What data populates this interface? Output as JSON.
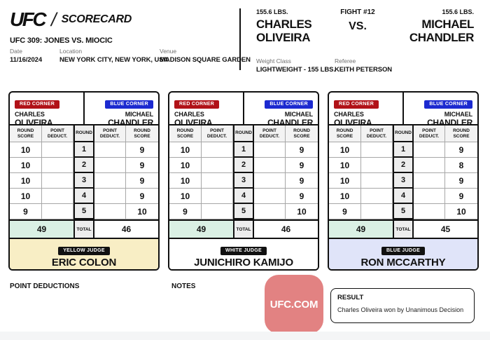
{
  "header": {
    "logo_ufc": "UFC",
    "logo_separator": "/",
    "logo_scorecard": "SCORECARD",
    "event_title": "UFC 309: JONES VS. MIOCIC",
    "date": {
      "label": "Date",
      "value": "11/16/2024"
    },
    "location": {
      "label": "Location",
      "value": "NEW YORK CITY, NEW YORK, USA"
    },
    "venue": {
      "label": "Venue",
      "value": "MADISON SQUARE GARDEN"
    }
  },
  "fight": {
    "red": {
      "weight": "155.6 LBS.",
      "name_line1": "CHARLES",
      "name_line2": "OLIVEIRA"
    },
    "fight_number": "FIGHT #12",
    "vs": "VS.",
    "blue": {
      "weight": "155.6 LBS.",
      "name_line1": "MICHAEL",
      "name_line2": "CHANDLER"
    },
    "weight_class": {
      "label": "Weight Class",
      "value": "LIGHTWEIGHT - 155 LBS."
    },
    "referee": {
      "label": "Referee",
      "value": "KEITH PETERSON"
    }
  },
  "scorecards": {
    "red_corner_label": "RED CORNER",
    "blue_corner_label": "BLUE CORNER",
    "red_fighter": {
      "line1": "CHARLES",
      "line2": "OLIVEIRA"
    },
    "blue_fighter": {
      "line1": "MICHAEL",
      "line2": "CHANDLER"
    },
    "columns": [
      "ROUND SCORE",
      "POINT DEDUCT.",
      "ROUND",
      "POINT DEDUCT.",
      "ROUND SCORE"
    ],
    "total_label": "TOTAL",
    "judges": [
      {
        "badge": "YELLOW JUDGE",
        "name": "ERIC COLON",
        "footer_color": "#f8eec5",
        "rounds": [
          {
            "round": 1,
            "red": 10,
            "red_deduct": "",
            "blue_deduct": "",
            "blue": 9
          },
          {
            "round": 2,
            "red": 10,
            "red_deduct": "",
            "blue_deduct": "",
            "blue": 9
          },
          {
            "round": 3,
            "red": 10,
            "red_deduct": "",
            "blue_deduct": "",
            "blue": 9
          },
          {
            "round": 4,
            "red": 10,
            "red_deduct": "",
            "blue_deduct": "",
            "blue": 9
          },
          {
            "round": 5,
            "red": 9,
            "red_deduct": "",
            "blue_deduct": "",
            "blue": 10
          }
        ],
        "total_red": 49,
        "total_blue": 46
      },
      {
        "badge": "WHITE JUDGE",
        "name": "JUNICHIRO KAMIJO",
        "footer_color": "#ffffff",
        "rounds": [
          {
            "round": 1,
            "red": 10,
            "red_deduct": "",
            "blue_deduct": "",
            "blue": 9
          },
          {
            "round": 2,
            "red": 10,
            "red_deduct": "",
            "blue_deduct": "",
            "blue": 9
          },
          {
            "round": 3,
            "red": 10,
            "red_deduct": "",
            "blue_deduct": "",
            "blue": 9
          },
          {
            "round": 4,
            "red": 10,
            "red_deduct": "",
            "blue_deduct": "",
            "blue": 9
          },
          {
            "round": 5,
            "red": 9,
            "red_deduct": "",
            "blue_deduct": "",
            "blue": 10
          }
        ],
        "total_red": 49,
        "total_blue": 46
      },
      {
        "badge": "BLUE JUDGE",
        "name": "RON MCCARTHY",
        "footer_color": "#e0e4f9",
        "rounds": [
          {
            "round": 1,
            "red": 10,
            "red_deduct": "",
            "blue_deduct": "",
            "blue": 9
          },
          {
            "round": 2,
            "red": 10,
            "red_deduct": "",
            "blue_deduct": "",
            "blue": 8
          },
          {
            "round": 3,
            "red": 10,
            "red_deduct": "",
            "blue_deduct": "",
            "blue": 9
          },
          {
            "round": 4,
            "red": 10,
            "red_deduct": "",
            "blue_deduct": "",
            "blue": 9
          },
          {
            "round": 5,
            "red": 9,
            "red_deduct": "",
            "blue_deduct": "",
            "blue": 10
          }
        ],
        "total_red": 49,
        "total_blue": 45
      }
    ]
  },
  "footer": {
    "point_deductions_label": "POINT DEDUCTIONS",
    "notes_label": "NOTES",
    "ufc_com_label": "UFC.COM",
    "result": {
      "label": "RESULT",
      "text": "Charles Oliveira won by Unanimous Decision"
    }
  },
  "colors": {
    "red_corner": "#b11218",
    "blue_corner": "#1c2ad0",
    "ink": "#111111",
    "mint_total": "#daf0e4",
    "round_col_bg": "#ededed",
    "header_cell_bg": "#f3f3f3",
    "yellow_judge_footer": "#f8eec5",
    "white_judge_footer": "#ffffff",
    "blue_judge_footer": "#e0e4f9",
    "ufc_com_bg": "#e28282",
    "page_strip": "#f4f5f6"
  }
}
